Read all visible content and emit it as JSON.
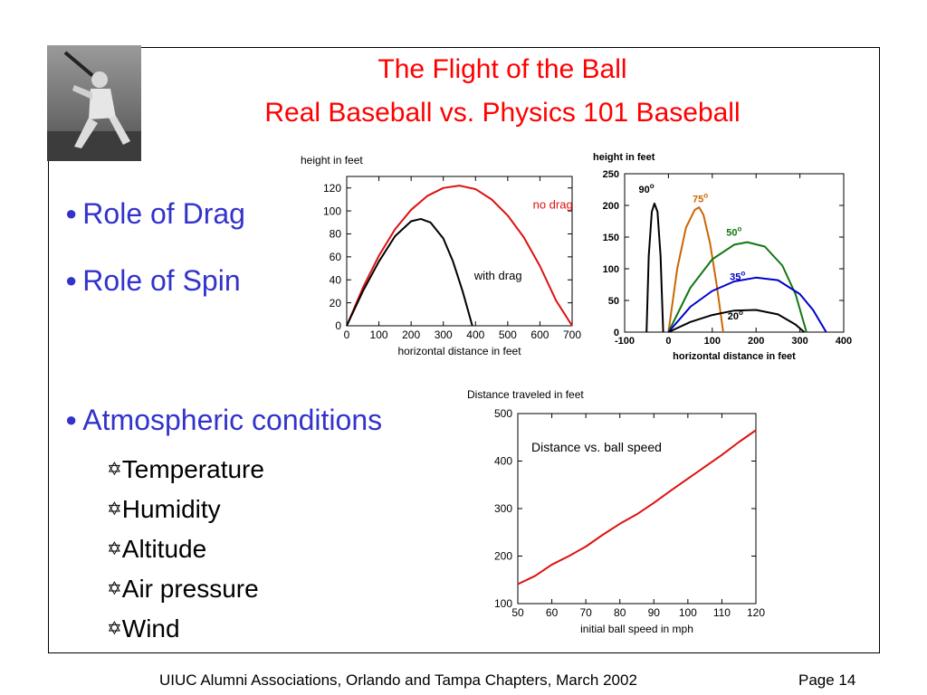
{
  "title": {
    "line1": "The Flight of the Ball",
    "line2": "Real Baseball vs. Physics 101 Baseball"
  },
  "bullets": [
    {
      "label": "Role of Drag"
    },
    {
      "label": "Role of Spin"
    },
    {
      "label": "Atmospheric conditions"
    }
  ],
  "bullet_glyph": "●",
  "sub_glyph": "✡",
  "sub_items": [
    "Temperature",
    "Humidity",
    "Altitude",
    "Air pressure",
    "Wind"
  ],
  "footer": {
    "left": "UIUC Alumni Associations, Orlando and Tampa Chapters, March 2002",
    "right": "Page 14"
  },
  "colors": {
    "title": "#ff0000",
    "bullet": "#3333cc"
  },
  "chart_data": [
    {
      "type": "line",
      "ylabel": "height in feet",
      "xlabel": "horizontal distance in feet",
      "xlim": [
        0,
        700
      ],
      "ylim": [
        0,
        130
      ],
      "xticks": [
        0,
        100,
        200,
        300,
        400,
        500,
        600,
        700
      ],
      "yticks": [
        0,
        20,
        40,
        60,
        80,
        100,
        120
      ],
      "series": [
        {
          "name": "no drag",
          "color": "#dd1111",
          "x": [
            0,
            50,
            100,
            150,
            200,
            250,
            300,
            350,
            400,
            450,
            500,
            550,
            600,
            650,
            700
          ],
          "y": [
            0,
            33,
            61,
            84,
            101,
            113,
            120,
            122,
            119,
            110,
            96,
            77,
            52,
            22,
            0
          ]
        },
        {
          "name": "with drag",
          "color": "#000000",
          "x": [
            0,
            50,
            100,
            150,
            200,
            230,
            260,
            300,
            330,
            360,
            390
          ],
          "y": [
            0,
            30,
            56,
            78,
            91,
            93,
            90,
            76,
            56,
            30,
            0
          ]
        }
      ]
    },
    {
      "type": "line",
      "ylabel": "height in feet",
      "xlabel": "horizontal distance in feet",
      "xlim": [
        -100,
        400
      ],
      "ylim": [
        0,
        250
      ],
      "xticks": [
        -100,
        0,
        100,
        200,
        300,
        400
      ],
      "yticks": [
        0,
        50,
        100,
        150,
        200,
        250
      ],
      "series": [
        {
          "name": "90°",
          "label": "90",
          "color": "#000000",
          "x": [
            -50,
            -45,
            -38,
            -32,
            -25,
            -18,
            -12
          ],
          "y": [
            0,
            120,
            190,
            203,
            190,
            120,
            0
          ]
        },
        {
          "name": "75°",
          "label": "75",
          "color": "#cc6600",
          "x": [
            0,
            20,
            40,
            60,
            70,
            80,
            95,
            110,
            125
          ],
          "y": [
            0,
            100,
            165,
            193,
            197,
            185,
            140,
            75,
            0
          ]
        },
        {
          "name": "50°",
          "label": "50",
          "color": "#117711",
          "x": [
            0,
            50,
            100,
            150,
            180,
            220,
            260,
            290,
            315
          ],
          "y": [
            0,
            70,
            115,
            138,
            142,
            135,
            105,
            60,
            0
          ]
        },
        {
          "name": "35°",
          "label": "35",
          "color": "#0000cc",
          "x": [
            0,
            50,
            100,
            150,
            200,
            250,
            300,
            330,
            360
          ],
          "y": [
            0,
            40,
            65,
            80,
            86,
            82,
            60,
            35,
            0
          ]
        },
        {
          "name": "20°",
          "label": "20",
          "color": "#000000",
          "x": [
            0,
            50,
            100,
            150,
            200,
            250,
            290,
            310
          ],
          "y": [
            0,
            16,
            27,
            34,
            35,
            28,
            12,
            0
          ]
        }
      ]
    },
    {
      "type": "line",
      "title": "Distance vs. ball speed",
      "ylabel": "Distance traveled in feet",
      "xlabel": "initial ball speed in mph",
      "xlim": [
        50,
        120
      ],
      "ylim": [
        100,
        500
      ],
      "xticks": [
        50,
        60,
        70,
        80,
        90,
        100,
        110,
        120
      ],
      "yticks": [
        100,
        200,
        300,
        400,
        500
      ],
      "series": [
        {
          "color": "#dd1111",
          "x": [
            50,
            55,
            60,
            65,
            70,
            75,
            80,
            85,
            90,
            95,
            100,
            105,
            110,
            115,
            120
          ],
          "y": [
            141,
            158,
            182,
            200,
            220,
            245,
            268,
            288,
            312,
            338,
            363,
            388,
            413,
            440,
            465
          ]
        }
      ]
    }
  ]
}
